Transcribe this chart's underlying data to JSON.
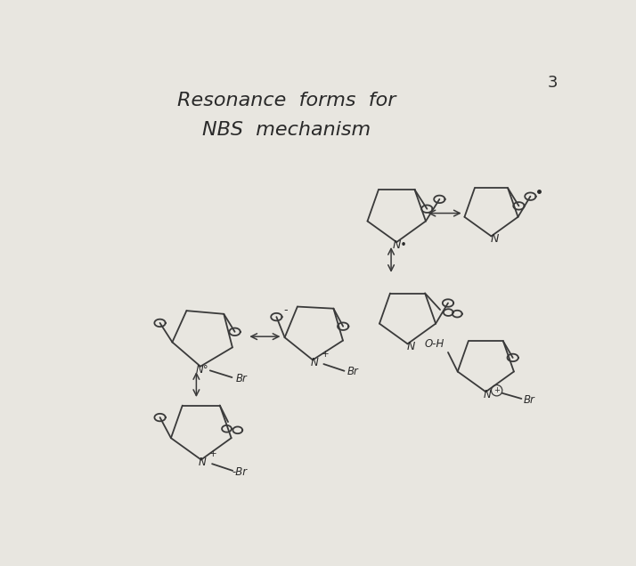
{
  "title_line1": "Resonance  forms  for",
  "title_line2": "NBS  mechanism",
  "page_number": "3",
  "bg_color": "#d8d8d8",
  "paper_color": "#e8e6e0",
  "line_color": "#3a3a3a",
  "text_color": "#2a2a2a",
  "linewidth": 1.3,
  "fontsize_title": 16,
  "fontsize_label": 9
}
